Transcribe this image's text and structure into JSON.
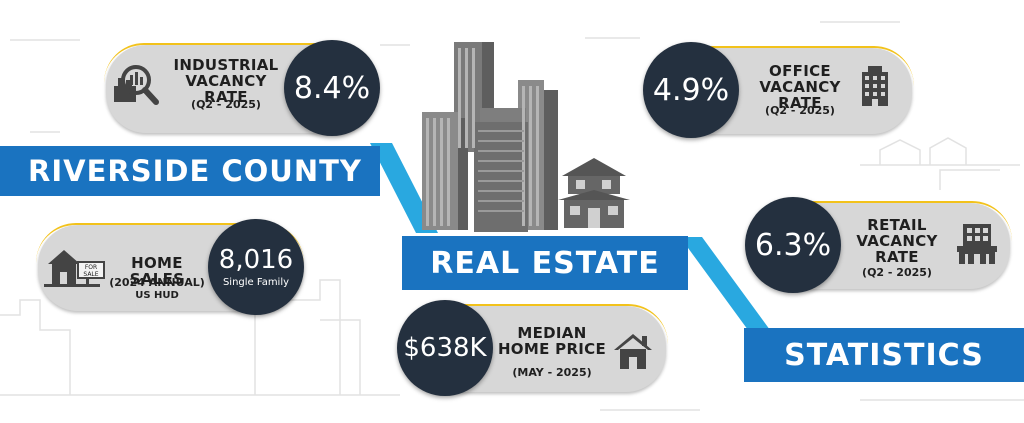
{
  "banners": {
    "county": "RIVERSIDE COUNTY",
    "real_estate": "REAL ESTATE",
    "statistics": "STATISTICS"
  },
  "industrial": {
    "label_line1": "INDUSTRIAL",
    "label_line2": "VACANCY RATE",
    "period": "(Q2 - 2025)",
    "value": "8.4%"
  },
  "office": {
    "label_line1": "OFFICE",
    "label_line2": "VACANCY RATE",
    "period": "(Q2 - 2025)",
    "value": "4.9%"
  },
  "retail": {
    "label_line1": "RETAIL",
    "label_line2": "VACANCY RATE",
    "period": "(Q2 - 2025)",
    "value": "6.3%"
  },
  "home_sales": {
    "label": "HOME SALES",
    "period": "(2024 ANNUAL)",
    "source": "US HUD",
    "value": "8,016",
    "value_note": "Single Family",
    "sign_text_1": "FOR",
    "sign_text_2": "SALE"
  },
  "median_price": {
    "label_line1": "MEDIAN",
    "label_line2": "HOME PRICE",
    "period": "(MAY - 2025)",
    "value": "$638K"
  },
  "icons": [
    "industrial-magnifier-icon",
    "office-building-icon",
    "retail-storefront-icon",
    "for-sale-house-icon",
    "house-icon",
    "skyscrapers-illustration",
    "two-story-house-illustration"
  ],
  "colors": {
    "banner_blue": "#1a73c0",
    "banner_light_blue": "#29a8e0",
    "circle_navy": "#24303f",
    "pill_gray": "#d7d7d7",
    "accent_gold": "#f2c21b"
  }
}
